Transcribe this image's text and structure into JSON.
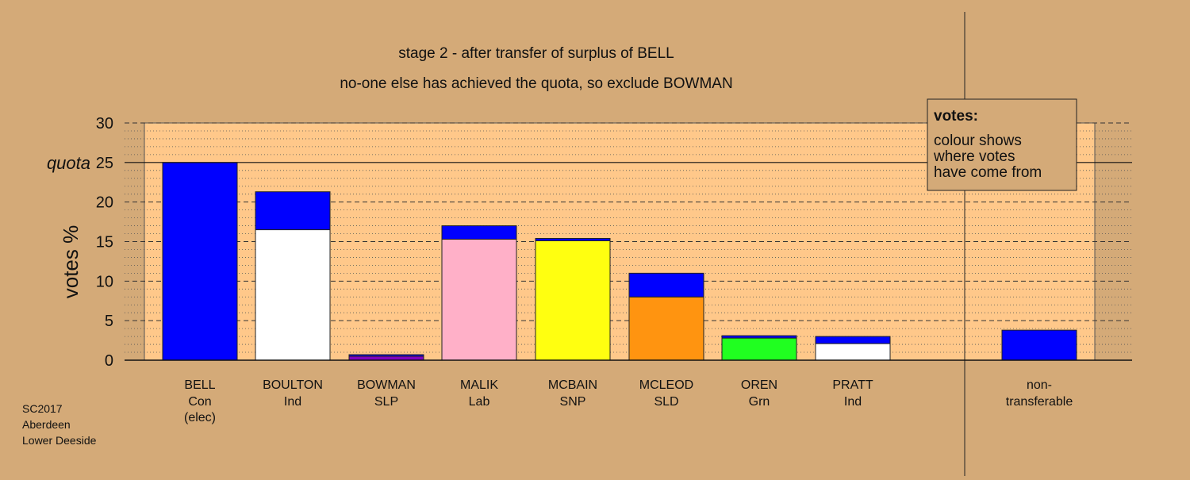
{
  "chart_data": {
    "type": "bar",
    "title": "stage 2 - after transfer of surplus of BELL",
    "subtitle": "no-one else has achieved the quota, so exclude BOWMAN",
    "ylabel": "votes %",
    "quota_label": "quota",
    "quota": 25,
    "ylim": [
      0,
      30
    ],
    "yticks": [
      "0",
      "5",
      "10",
      "15",
      "20",
      "25",
      "30"
    ],
    "categories": [
      {
        "name": "BELL",
        "party": "Con",
        "note": "(elec)"
      },
      {
        "name": "BOULTON",
        "party": "Ind",
        "note": ""
      },
      {
        "name": "BOWMAN",
        "party": "SLP",
        "note": ""
      },
      {
        "name": "MALIK",
        "party": "Lab",
        "note": ""
      },
      {
        "name": "MCBAIN",
        "party": "SNP",
        "note": ""
      },
      {
        "name": "MCLEOD",
        "party": "SLD",
        "note": ""
      },
      {
        "name": "OREN",
        "party": "Grn",
        "note": ""
      },
      {
        "name": "PRATT",
        "party": "Ind",
        "note": ""
      }
    ],
    "series": [
      {
        "color": "#0000ff",
        "values": [
          25.0,
          0,
          0,
          0,
          0,
          0,
          0,
          0
        ]
      },
      {
        "color": "#ffffff",
        "values": [
          0,
          16.5,
          0,
          0,
          0,
          0,
          0,
          2.1
        ]
      },
      {
        "color": "#8000c0",
        "values": [
          0,
          0,
          0.5,
          0,
          0,
          0,
          0,
          0
        ]
      },
      {
        "color": "#ffb0c8",
        "values": [
          0,
          0,
          0,
          15.3,
          0,
          0,
          0,
          0
        ]
      },
      {
        "color": "#ffff10",
        "values": [
          0,
          0,
          0,
          0,
          15.1,
          0,
          0,
          0
        ]
      },
      {
        "color": "#ff9410",
        "values": [
          0,
          0,
          0,
          0,
          0,
          8.0,
          0,
          0
        ]
      },
      {
        "color": "#20ff20",
        "values": [
          0,
          0,
          0,
          0,
          0,
          0,
          2.8,
          0
        ]
      },
      {
        "color": "#0000ff",
        "values": [
          0,
          4.8,
          0.2,
          1.7,
          0.3,
          3.0,
          0.3,
          0.9
        ]
      }
    ],
    "nontransferable": {
      "label_line1": "non-",
      "label_line2": "transferable",
      "value": 3.8,
      "color": "#0000ff"
    },
    "legend": {
      "title": "votes:",
      "lines": [
        "colour shows",
        "where votes",
        "have come from"
      ],
      "position": "top-right"
    },
    "grid": true,
    "colors": {
      "background": "#d4aa78",
      "plot_area": "#ffc88a"
    }
  },
  "footer": {
    "line1": "SC2017",
    "line2": "Aberdeen",
    "line3": "Lower Deeside"
  }
}
